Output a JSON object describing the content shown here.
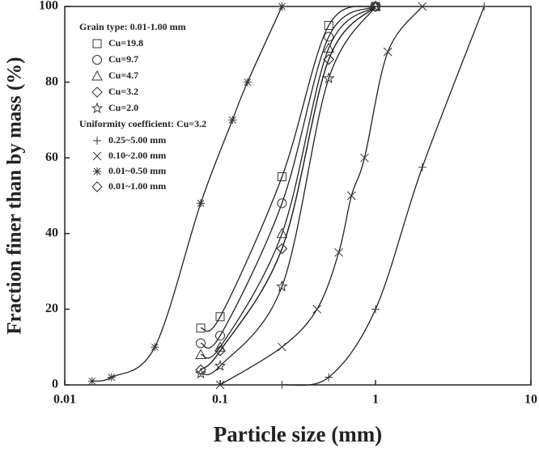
{
  "chart_data": {
    "type": "scatter",
    "xlabel": "Particle size (mm)",
    "ylabel": "Fraction finer than by mass (%)",
    "xscale": "log",
    "xlim": [
      0.01,
      10
    ],
    "xticks": [
      0.01,
      0.1,
      1,
      10
    ],
    "ylim": [
      0,
      100
    ],
    "yticks": [
      0,
      20,
      40,
      60,
      80,
      100
    ],
    "groups": [
      {
        "title": "Grain type: 0.01-1.00 mm",
        "series": [
          {
            "name": "Cu=19.8",
            "marker": "square",
            "color": "#333333",
            "x": [
              0.075,
              0.1,
              0.25,
              0.5,
              1
            ],
            "values": [
              15,
              18,
              55,
              95,
              100
            ]
          },
          {
            "name": "Cu=9.7",
            "marker": "circle",
            "color": "#333333",
            "x": [
              0.075,
              0.1,
              0.25,
              0.5,
              1
            ],
            "values": [
              11,
              13,
              48,
              92,
              100
            ]
          },
          {
            "name": "Cu=4.7",
            "marker": "triangle",
            "color": "#333333",
            "x": [
              0.075,
              0.1,
              0.25,
              0.5,
              1
            ],
            "values": [
              8,
              10,
              40,
              89,
              100
            ]
          },
          {
            "name": "Cu=3.2",
            "marker": "diamond",
            "color": "#333333",
            "x": [
              0.075,
              0.1,
              0.25,
              0.5,
              1
            ],
            "values": [
              4,
              9,
              36,
              86,
              100
            ]
          },
          {
            "name": "Cu=2.0",
            "marker": "star",
            "color": "#333333",
            "x": [
              0.075,
              0.1,
              0.25,
              0.5,
              1
            ],
            "values": [
              3,
              5,
              26,
              81,
              100
            ]
          }
        ]
      },
      {
        "title": "Uniformity coefficient: Cu=3.2",
        "series": [
          {
            "name": "0.25~5.00 mm",
            "marker": "plus",
            "color": "#333333",
            "x": [
              0.25,
              0.5,
              1,
              2,
              5
            ],
            "values": [
              0,
              2,
              20,
              57.5,
              100
            ]
          },
          {
            "name": "0.10~2.00 mm",
            "marker": "x",
            "color": "#333333",
            "x": [
              0.1,
              0.25,
              0.42,
              0.58,
              0.7,
              0.85,
              1.2,
              2
            ],
            "values": [
              0,
              10,
              20,
              35,
              50,
              60,
              88,
              100
            ]
          },
          {
            "name": "0.01~0.50 mm",
            "marker": "asterisk",
            "color": "#333333",
            "x": [
              0.015,
              0.02,
              0.038,
              0.075,
              0.12,
              0.15,
              0.25
            ],
            "values": [
              1,
              2,
              10,
              48,
              70,
              80,
              100
            ]
          },
          {
            "name": "0.01~1.00 mm",
            "marker": "diamond",
            "color": "#333333",
            "x": [
              0.075,
              0.1,
              0.25,
              0.5,
              1
            ],
            "values": [
              4,
              9,
              36,
              86,
              100
            ]
          }
        ]
      }
    ]
  }
}
